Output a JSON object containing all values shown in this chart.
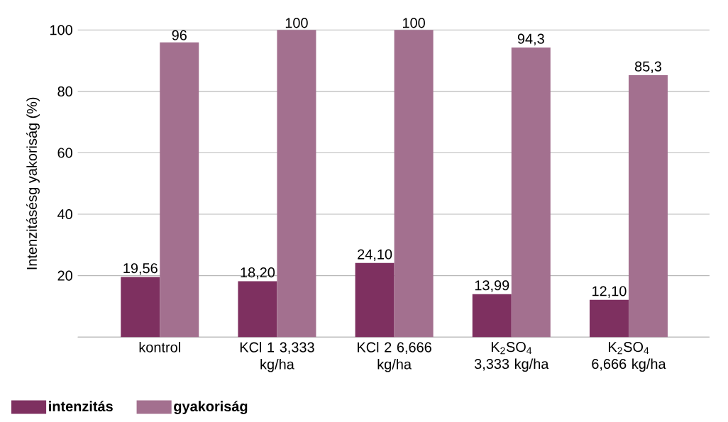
{
  "chart_data": {
    "type": "bar",
    "ylabel": "Intenzitásésg yakoriság (%)",
    "categories": [
      "kontrol",
      "KCl 1 3,333 kg/ha",
      "KCl 2 6,666 kg/ha",
      "K$_{2}$SO$_{4}$ 3,333 kg/ha",
      "K$_{2}$SO$_{4}$ 6,666 kg/ha"
    ],
    "series": [
      {
        "name": "intenzitás",
        "color": "#7e3060",
        "values": [
          19.56,
          18.2,
          24.1,
          13.99,
          12.1
        ],
        "value_labels": [
          "19,56",
          "18,20",
          "24,10",
          "13,99",
          "12,10"
        ]
      },
      {
        "name": "gyakoriság",
        "color": "#a3708f",
        "values": [
          96,
          100,
          100,
          94.3,
          85.3
        ],
        "value_labels": [
          "96",
          "100",
          "100",
          "94,3",
          "85,3"
        ]
      }
    ],
    "ylim": [
      0,
      100
    ],
    "yticks": [
      {
        "value": 0,
        "label": null
      },
      20,
      40,
      60,
      80,
      100
    ],
    "grid": "y",
    "legend": "bottom left"
  }
}
